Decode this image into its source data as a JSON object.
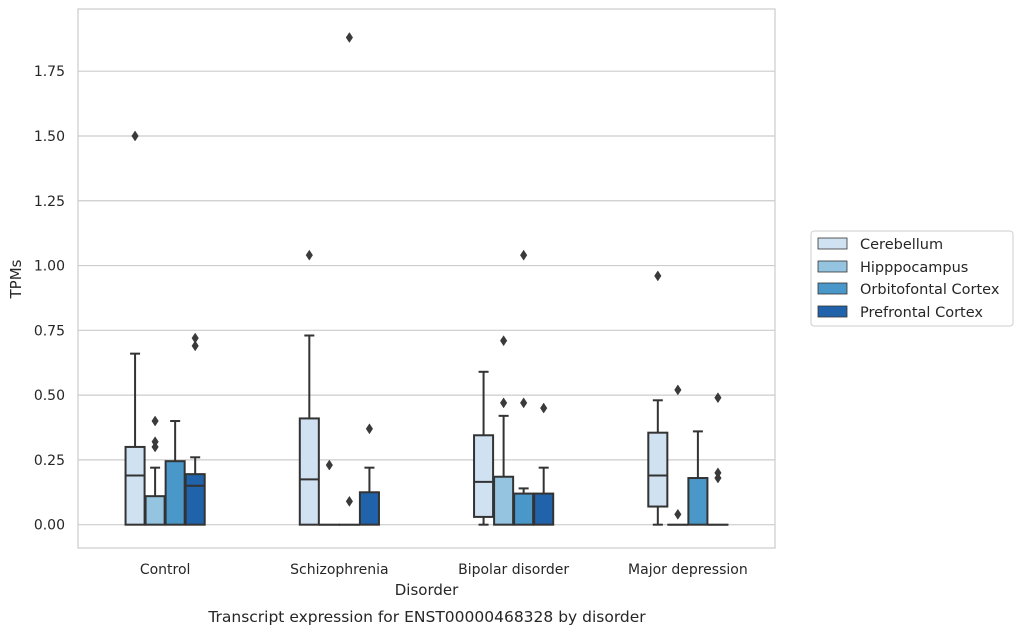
{
  "chart_data": {
    "type": "box",
    "caption": "Transcript expression for ENST00000468328 by disorder",
    "xlabel": "Disorder",
    "ylabel": "TPMs",
    "ylim": [
      -0.09,
      1.99
    ],
    "yticks": [
      "0.00",
      "0.25",
      "0.50",
      "0.75",
      "1.00",
      "1.25",
      "1.50",
      "1.75"
    ],
    "grid": true,
    "legend_position": "right",
    "categories": [
      "Control",
      "Schizophrenia",
      "Bipolar disorder",
      "Major depression"
    ],
    "series": [
      {
        "name": "Cerebellum",
        "color": "#d0e1f2",
        "boxes": [
          {
            "q1": 0.0,
            "median": 0.19,
            "q3": 0.3,
            "whisker_low": 0.0,
            "whisker_high": 0.66,
            "outliers": [
              1.5
            ]
          },
          {
            "q1": 0.0,
            "median": 0.175,
            "q3": 0.41,
            "whisker_low": 0.0,
            "whisker_high": 0.73,
            "outliers": [
              1.04
            ]
          },
          {
            "q1": 0.03,
            "median": 0.165,
            "q3": 0.345,
            "whisker_low": 0.0,
            "whisker_high": 0.59,
            "outliers": []
          },
          {
            "q1": 0.07,
            "median": 0.19,
            "q3": 0.355,
            "whisker_low": 0.0,
            "whisker_high": 0.48,
            "outliers": [
              0.96
            ]
          }
        ]
      },
      {
        "name": "Hipppocampus",
        "color": "#94c4df",
        "boxes": [
          {
            "q1": 0.0,
            "median": 0.0,
            "q3": 0.11,
            "whisker_low": 0.0,
            "whisker_high": 0.22,
            "outliers": [
              0.3,
              0.32,
              0.4
            ]
          },
          {
            "q1": 0.0,
            "median": 0.0,
            "q3": 0.0,
            "whisker_low": 0.0,
            "whisker_high": 0.0,
            "outliers": [
              0.23
            ]
          },
          {
            "q1": 0.0,
            "median": 0.0,
            "q3": 0.185,
            "whisker_low": 0.0,
            "whisker_high": 0.42,
            "outliers": [
              0.47,
              0.71
            ]
          },
          {
            "q1": 0.0,
            "median": 0.0,
            "q3": 0.0,
            "whisker_low": 0.0,
            "whisker_high": 0.0,
            "outliers": [
              0.04,
              0.52
            ]
          }
        ]
      },
      {
        "name": "Orbitofontal Cortex",
        "color": "#4a98c9",
        "boxes": [
          {
            "q1": 0.0,
            "median": 0.0,
            "q3": 0.245,
            "whisker_low": 0.0,
            "whisker_high": 0.4,
            "outliers": []
          },
          {
            "q1": 0.0,
            "median": 0.0,
            "q3": 0.0,
            "whisker_low": 0.0,
            "whisker_high": 0.0,
            "outliers": [
              0.09,
              1.88
            ]
          },
          {
            "q1": 0.0,
            "median": 0.0,
            "q3": 0.12,
            "whisker_low": 0.0,
            "whisker_high": 0.14,
            "outliers": [
              0.47,
              1.04
            ]
          },
          {
            "q1": 0.0,
            "median": 0.0,
            "q3": 0.18,
            "whisker_low": 0.0,
            "whisker_high": 0.36,
            "outliers": []
          }
        ]
      },
      {
        "name": "Prefrontal Cortex",
        "color": "#2163aa",
        "boxes": [
          {
            "q1": 0.0,
            "median": 0.15,
            "q3": 0.195,
            "whisker_low": 0.0,
            "whisker_high": 0.26,
            "outliers": [
              0.69,
              0.72
            ]
          },
          {
            "q1": 0.0,
            "median": 0.0,
            "q3": 0.125,
            "whisker_low": 0.0,
            "whisker_high": 0.22,
            "outliers": [
              0.37
            ]
          },
          {
            "q1": 0.0,
            "median": 0.0,
            "q3": 0.12,
            "whisker_low": 0.0,
            "whisker_high": 0.22,
            "outliers": [
              0.45
            ]
          },
          {
            "q1": 0.0,
            "median": 0.0,
            "q3": 0.0,
            "whisker_low": 0.0,
            "whisker_high": 0.0,
            "outliers": [
              0.18,
              0.2,
              0.49
            ]
          }
        ]
      }
    ]
  }
}
